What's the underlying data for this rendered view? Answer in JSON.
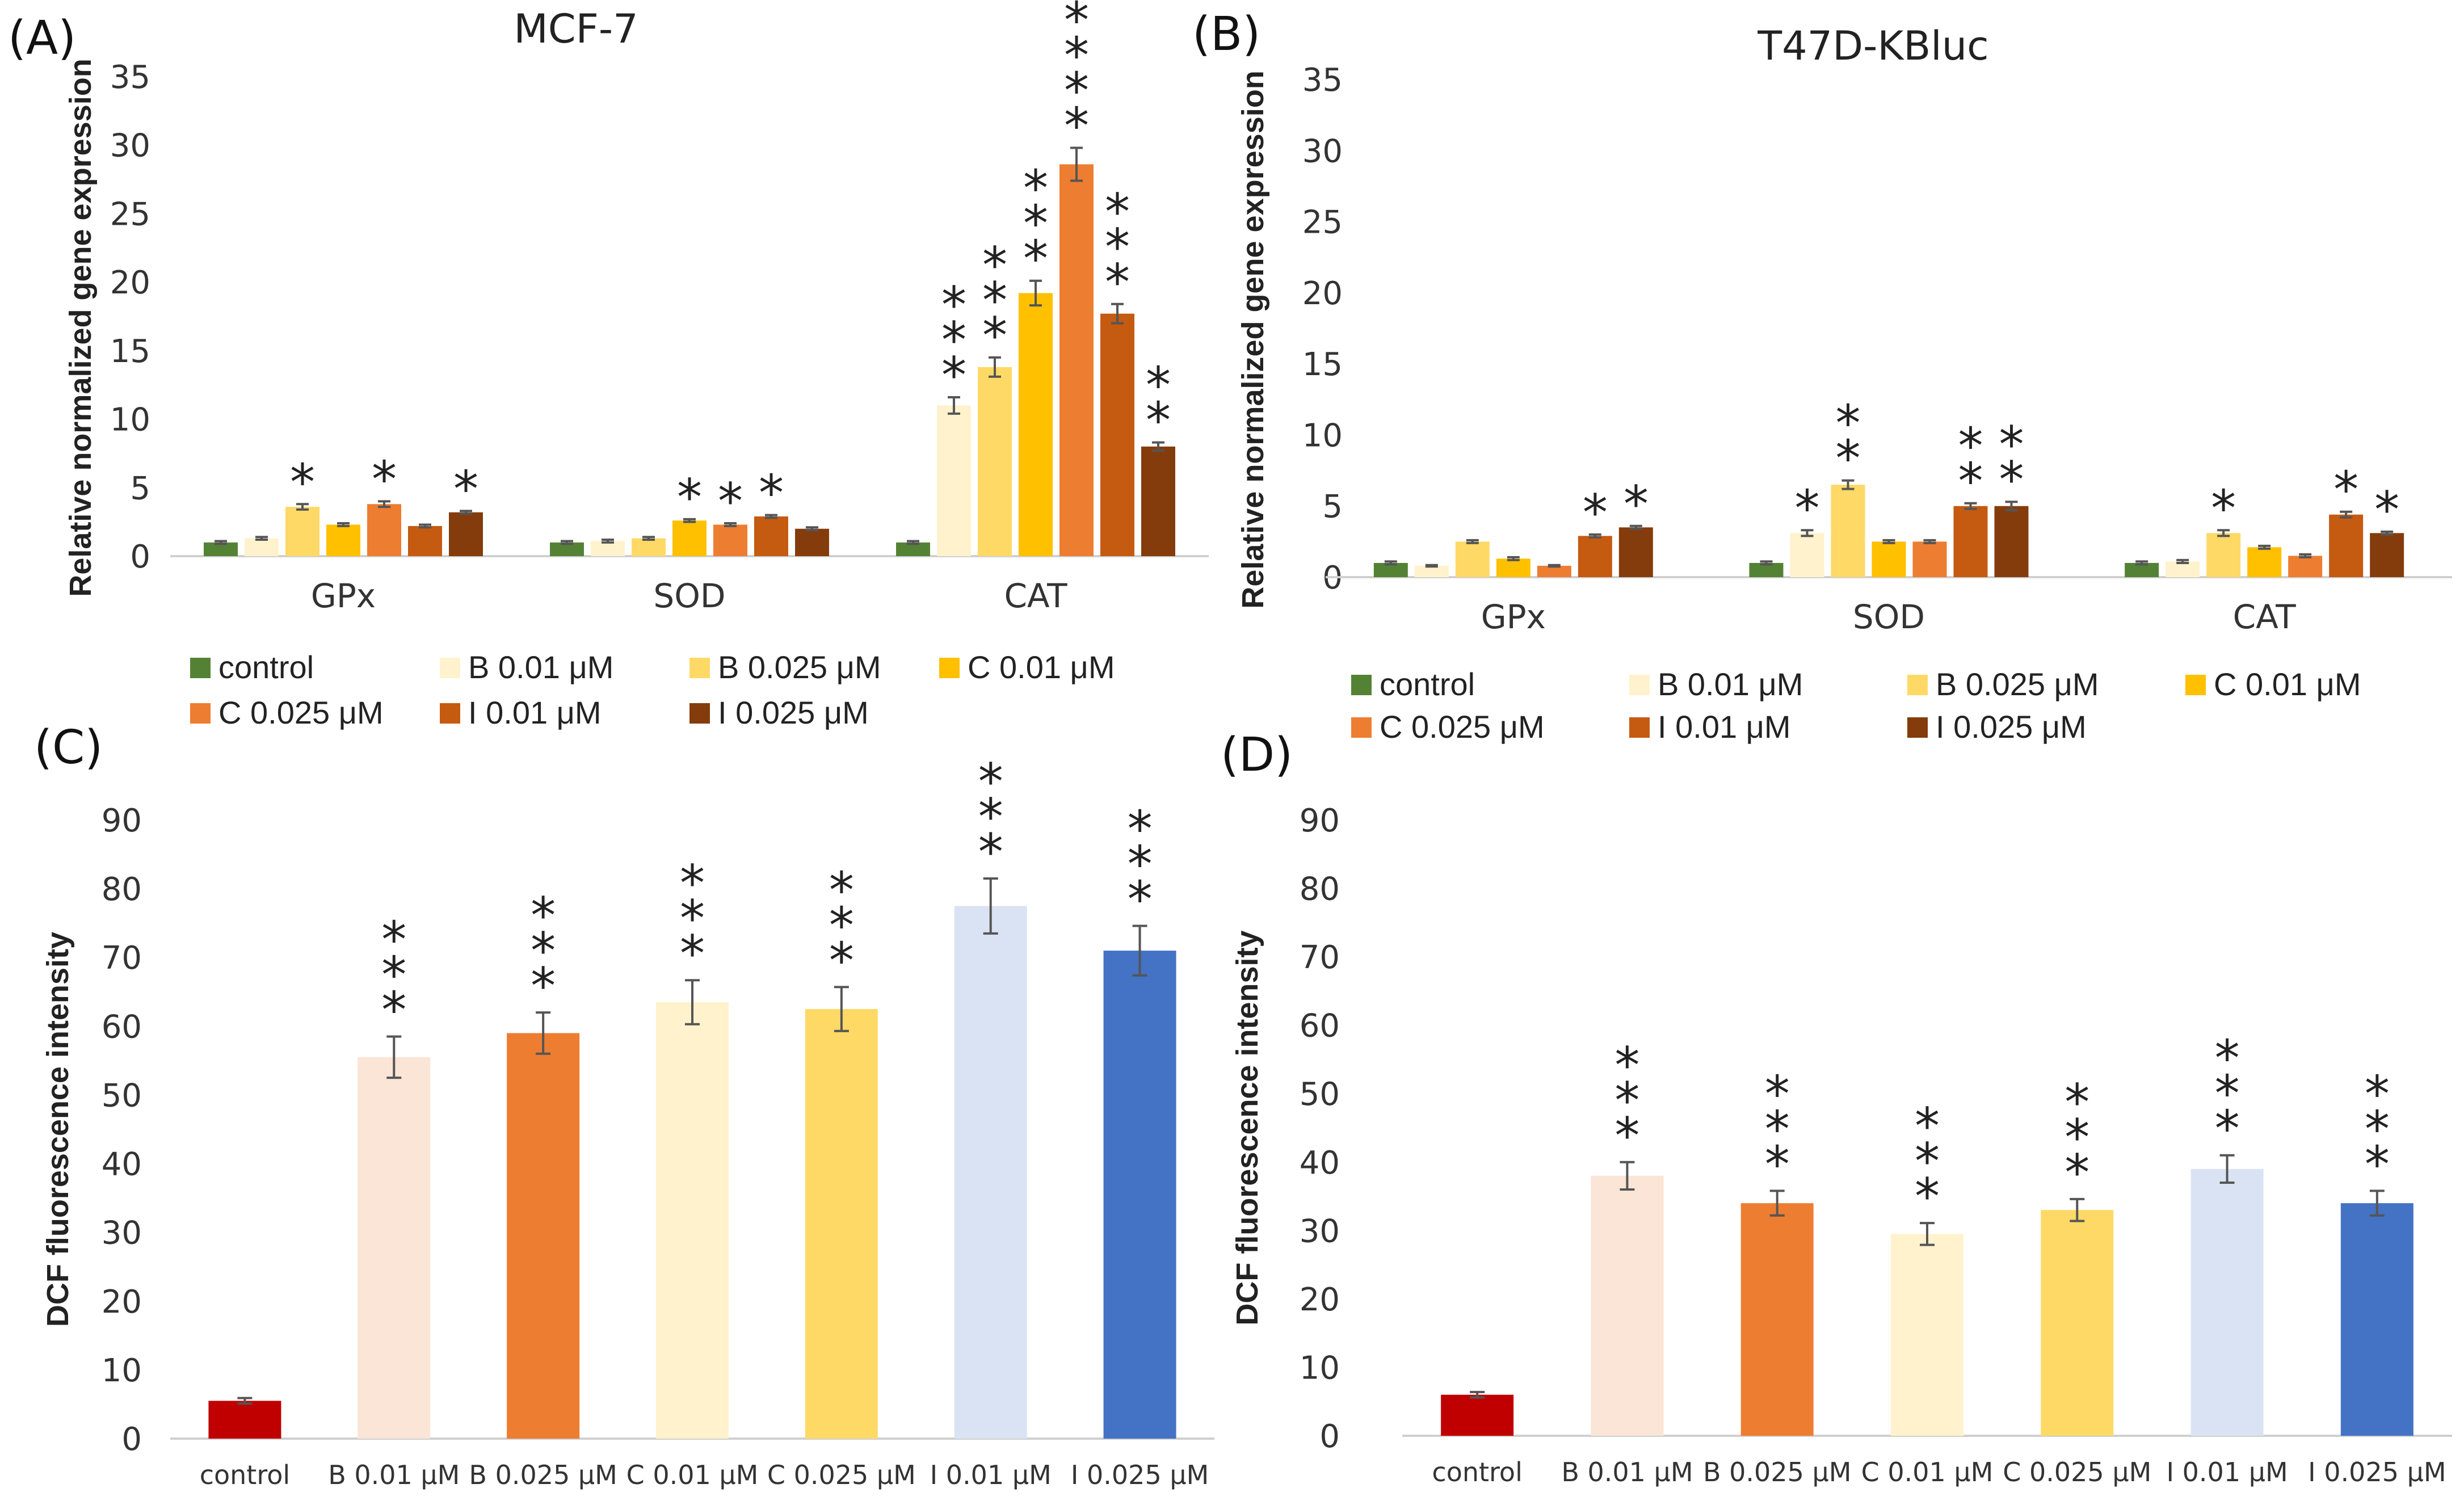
{
  "panels": [
    {
      "id": "A",
      "label": "(A)",
      "title": "MCF-7",
      "chart_data": {
        "type": "bar",
        "ylabel": "Relative normalized gene expression",
        "xlabel": "",
        "ylim": [
          0,
          35
        ],
        "yticks": [
          0,
          5,
          10,
          15,
          20,
          25,
          30,
          35
        ],
        "categories": [
          "GPx",
          "SOD",
          "CAT"
        ],
        "legend": "bottom",
        "series": [
          {
            "name": "control",
            "color": "#548235",
            "values": [
              1.0,
              1.0,
              1.0
            ],
            "errors": [
              0.1,
              0.1,
              0.1
            ],
            "stars": [
              "",
              "",
              ""
            ]
          },
          {
            "name": "B 0.01 μM",
            "color": "#FFF2CC",
            "values": [
              1.3,
              1.1,
              11.0
            ],
            "errors": [
              0.1,
              0.1,
              0.6
            ],
            "stars": [
              "",
              "",
              "***"
            ]
          },
          {
            "name": "B 0.025 μM",
            "color": "#FFD966",
            "values": [
              3.6,
              1.3,
              13.8
            ],
            "errors": [
              0.2,
              0.1,
              0.7
            ],
            "stars": [
              "*",
              "",
              "***"
            ]
          },
          {
            "name": "C 0.01 μM",
            "color": "#FFC000",
            "values": [
              2.3,
              2.6,
              19.2
            ],
            "errors": [
              0.1,
              0.1,
              0.9
            ],
            "stars": [
              "",
              "*",
              "***"
            ]
          },
          {
            "name": "C 0.025 μM",
            "color": "#ED7D31",
            "values": [
              3.8,
              2.3,
              28.6
            ],
            "errors": [
              0.2,
              0.1,
              1.2
            ],
            "stars": [
              "*",
              "*",
              "****"
            ]
          },
          {
            "name": "I 0.01 μM",
            "color": "#C55A11",
            "values": [
              2.2,
              2.9,
              17.7
            ],
            "errors": [
              0.1,
              0.1,
              0.7
            ],
            "stars": [
              "",
              "*",
              "***"
            ]
          },
          {
            "name": "I 0.025 μM",
            "color": "#843C0C",
            "values": [
              3.2,
              2.0,
              8.0
            ],
            "errors": [
              0.1,
              0.1,
              0.3
            ],
            "stars": [
              "*",
              "",
              "**"
            ]
          }
        ]
      }
    },
    {
      "id": "B",
      "label": "(B)",
      "title": "T47D-KBluc",
      "chart_data": {
        "type": "bar",
        "ylabel": "Relative normalized gene expression",
        "xlabel": "",
        "ylim": [
          0,
          35
        ],
        "yticks": [
          0,
          5,
          10,
          15,
          20,
          25,
          30,
          35
        ],
        "categories": [
          "GPx",
          "SOD",
          "CAT"
        ],
        "legend": "bottom",
        "series": [
          {
            "name": "control",
            "color": "#548235",
            "values": [
              1.0,
              1.0,
              1.0
            ],
            "errors": [
              0.1,
              0.1,
              0.1
            ],
            "stars": [
              "",
              "",
              ""
            ]
          },
          {
            "name": "B 0.01 μM",
            "color": "#FFF2CC",
            "values": [
              0.8,
              3.1,
              1.1
            ],
            "errors": [
              0.05,
              0.2,
              0.1
            ],
            "stars": [
              "",
              "*",
              ""
            ]
          },
          {
            "name": "B 0.025 μM",
            "color": "#FFD966",
            "values": [
              2.5,
              6.5,
              3.1
            ],
            "errors": [
              0.1,
              0.3,
              0.2
            ],
            "stars": [
              "",
              "**",
              "*"
            ]
          },
          {
            "name": "C 0.01 μM",
            "color": "#FFC000",
            "values": [
              1.3,
              2.5,
              2.1
            ],
            "errors": [
              0.1,
              0.1,
              0.1
            ],
            "stars": [
              "",
              "",
              ""
            ]
          },
          {
            "name": "C 0.025 μM",
            "color": "#ED7D31",
            "values": [
              0.8,
              2.5,
              1.5
            ],
            "errors": [
              0.05,
              0.1,
              0.1
            ],
            "stars": [
              "",
              "",
              ""
            ]
          },
          {
            "name": "I 0.01 μM",
            "color": "#C55A11",
            "values": [
              2.9,
              5.0,
              4.4
            ],
            "errors": [
              0.1,
              0.2,
              0.2
            ],
            "stars": [
              "*",
              "**",
              "*"
            ]
          },
          {
            "name": "I 0.025 μM",
            "color": "#843C0C",
            "values": [
              3.5,
              5.0,
              3.1
            ],
            "errors": [
              0.1,
              0.3,
              0.1
            ],
            "stars": [
              "*",
              "**",
              "*"
            ]
          }
        ]
      }
    },
    {
      "id": "C",
      "label": "(C)",
      "title": "",
      "chart_data": {
        "type": "bar",
        "ylabel": "DCF fluorescence intensity",
        "xlabel": "",
        "ylim": [
          0,
          90
        ],
        "yticks": [
          0,
          10,
          20,
          30,
          40,
          50,
          60,
          70,
          80,
          90
        ],
        "categories": [
          "control",
          "B 0.01 μM",
          "B 0.025 μM",
          "C 0.01 μM",
          "C 0.025 μM",
          "I 0.01 μM",
          "I 0.025 μM"
        ],
        "colors": [
          "#C00000",
          "#FBE5D6",
          "#ED7D31",
          "#FFF2CC",
          "#FFD966",
          "#DAE3F3",
          "#4472C4"
        ],
        "values": [
          5.5,
          55.5,
          59.0,
          63.5,
          62.5,
          77.5,
          71.0
        ],
        "errors": [
          0.4,
          3.0,
          3.0,
          3.2,
          3.2,
          4.0,
          3.6
        ],
        "stars": [
          "",
          "***",
          "***",
          "***",
          "***",
          "***",
          "***"
        ]
      }
    },
    {
      "id": "D",
      "label": "(D)",
      "title": "",
      "chart_data": {
        "type": "bar",
        "ylabel": "DCF fluorescence intensity",
        "xlabel": "",
        "ylim": [
          0,
          90
        ],
        "yticks": [
          0,
          10,
          20,
          30,
          40,
          50,
          60,
          70,
          80,
          90
        ],
        "categories": [
          "control",
          "B 0.01 μM",
          "B 0.025 μM",
          "C 0.01 μM",
          "C 0.025 μM",
          "I 0.01 μM",
          "I 0.025 μM"
        ],
        "colors": [
          "#C00000",
          "#FBE5D6",
          "#ED7D31",
          "#FFF2CC",
          "#FFD966",
          "#DAE3F3",
          "#4472C4"
        ],
        "values": [
          6.0,
          38.0,
          34.0,
          29.5,
          33.0,
          39.0,
          34.0
        ],
        "errors": [
          0.4,
          2.0,
          1.8,
          1.6,
          1.6,
          2.0,
          1.8
        ],
        "stars": [
          "",
          "***",
          "***",
          "***",
          "***",
          "***",
          "***"
        ]
      }
    }
  ]
}
